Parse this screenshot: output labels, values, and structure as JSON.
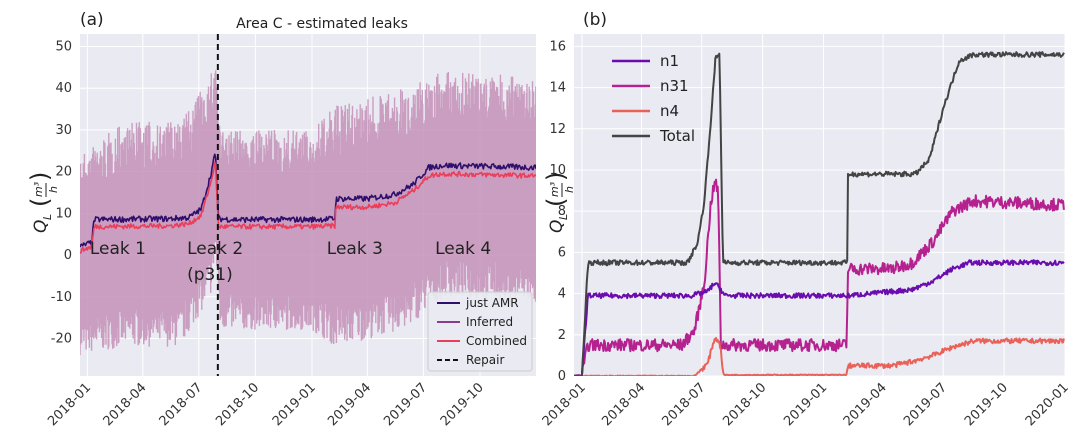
{
  "chart_data": [
    {
      "type": "line",
      "panel_label": "(a)",
      "title": "Area C - estimated leaks",
      "ylabel": "Q_L (m^3/h)",
      "ylim": [
        -29,
        53
      ],
      "xlim": [
        "2017-12-20",
        "2019-12-31"
      ],
      "x_tick_labels": [
        "2018-01",
        "2018-04",
        "2018-07",
        "2018-10",
        "2019-01",
        "2019-04",
        "2019-07",
        "2019-10"
      ],
      "y_tick_labels": [
        "-20",
        "-10",
        "0",
        "10",
        "20",
        "30",
        "40",
        "50"
      ],
      "grid": true,
      "legend_placement": "lower-right",
      "series": [
        {
          "name": "just AMR",
          "color": "#2e0f6b",
          "x": [
            "2017-12-20",
            "2018-01-08",
            "2018-01-12",
            "2018-05-15",
            "2018-06-15",
            "2018-07-05",
            "2018-07-20",
            "2018-07-28",
            "2018-08-02",
            "2018-09-01",
            "2019-01-01",
            "2019-02-07",
            "2019-02-09",
            "2019-04-01",
            "2019-05-15",
            "2019-06-15",
            "2019-07-10",
            "2019-08-01",
            "2019-12-31"
          ],
          "y": [
            2,
            3,
            8.5,
            8.7,
            9,
            11,
            19,
            24.5,
            8.7,
            8.5,
            8.5,
            8.7,
            13.5,
            13.5,
            14.5,
            17,
            21,
            21.5,
            21
          ]
        },
        {
          "name": "Inferred",
          "color": "#c490b8",
          "x": [
            "2017-12-20",
            "2018-03-01",
            "2018-06-01",
            "2018-07-20",
            "2018-07-28",
            "2018-08-05",
            "2019-01-01",
            "2019-02-08",
            "2019-06-01",
            "2019-08-01",
            "2019-12-31"
          ],
          "lower": [
            -24,
            -22,
            -22,
            -10,
            0,
            -18,
            -18,
            -22,
            -18,
            -10,
            -12
          ],
          "upper": [
            24,
            32,
            32,
            43,
            48,
            30,
            30,
            36,
            40,
            44,
            43
          ]
        },
        {
          "name": "Combined",
          "color": "#ea3e5b",
          "x": [
            "2017-12-20",
            "2018-01-08",
            "2018-01-12",
            "2018-05-15",
            "2018-06-15",
            "2018-07-05",
            "2018-07-20",
            "2018-07-28",
            "2018-08-02",
            "2018-09-01",
            "2019-01-01",
            "2019-02-07",
            "2019-02-09",
            "2019-04-01",
            "2019-05-15",
            "2019-06-15",
            "2019-07-10",
            "2019-08-01",
            "2019-12-31"
          ],
          "y": [
            1,
            2,
            6.8,
            7,
            7.5,
            9.5,
            17,
            22.5,
            6.8,
            6.8,
            6.8,
            7,
            11.5,
            11.5,
            12.5,
            15.5,
            19,
            19.5,
            19
          ]
        },
        {
          "name": "Repair",
          "color": "#111111",
          "x_value": "2018-08-01"
        }
      ],
      "annotations": [
        {
          "text": "Leak 1",
          "x": "2018-01-05",
          "y": 0.3
        },
        {
          "text": "Leak 2",
          "x": "2018-06-12",
          "y": 0.3
        },
        {
          "text": "(p31)",
          "x": "2018-06-12",
          "y": -6
        },
        {
          "text": "Leak 3",
          "x": "2019-01-25",
          "y": 0.3
        },
        {
          "text": "Leak 4",
          "x": "2019-07-20",
          "y": 0.3
        }
      ]
    },
    {
      "type": "line",
      "panel_label": "(b)",
      "ylabel": "Q_L (m^3/h)",
      "ylim": [
        0,
        16.6
      ],
      "xlim": [
        "2017-12-20",
        "2020-01-01"
      ],
      "x_tick_labels": [
        "2018-01",
        "2018-04",
        "2018-07",
        "2018-10",
        "2019-01",
        "2019-04",
        "2019-07",
        "2019-10",
        "2020-01"
      ],
      "y_tick_labels": [
        "0",
        "2",
        "4",
        "6",
        "8",
        "10",
        "12",
        "14",
        "16"
      ],
      "grid": true,
      "legend_placement": "upper-left",
      "series": [
        {
          "name": "n1",
          "color": "#6a0dad",
          "x": [
            "2017-12-20",
            "2018-01-01",
            "2018-01-10",
            "2018-06-15",
            "2018-07-10",
            "2018-07-20",
            "2018-07-28",
            "2018-08-05",
            "2019-01-01",
            "2019-02-07",
            "2019-04-15",
            "2019-05-15",
            "2019-06-15",
            "2019-07-15",
            "2019-08-10",
            "2019-12-31"
          ],
          "y": [
            0,
            0,
            3.9,
            3.9,
            4.1,
            4.5,
            4.3,
            3.9,
            3.9,
            3.9,
            4.1,
            4.2,
            4.6,
            5.2,
            5.5,
            5.5
          ]
        },
        {
          "name": "n31",
          "color": "#b5218f",
          "x": [
            "2017-12-20",
            "2018-01-01",
            "2018-01-10",
            "2018-06-01",
            "2018-06-20",
            "2018-07-05",
            "2018-07-15",
            "2018-07-22",
            "2018-07-26",
            "2018-07-30",
            "2018-08-05",
            "2019-01-01",
            "2019-02-05",
            "2019-02-07",
            "2019-04-15",
            "2019-05-15",
            "2019-06-15",
            "2019-07-15",
            "2019-08-15",
            "2019-12-31"
          ],
          "y": [
            0,
            0,
            1.5,
            1.5,
            2.2,
            4.5,
            8.5,
            9.5,
            8.8,
            1.5,
            1.5,
            1.5,
            1.5,
            5.2,
            5.2,
            5.5,
            6.5,
            8.0,
            8.5,
            8.3
          ]
        },
        {
          "name": "n4",
          "color": "#e8625a",
          "x": [
            "2017-12-20",
            "2018-06-20",
            "2018-07-10",
            "2018-07-20",
            "2018-07-28",
            "2018-08-03",
            "2019-02-05",
            "2019-02-07",
            "2019-04-15",
            "2019-05-15",
            "2019-06-15",
            "2019-07-15",
            "2019-08-15",
            "2019-12-31"
          ],
          "y": [
            0,
            0,
            0.6,
            1.8,
            1.7,
            0.05,
            0.05,
            0.5,
            0.5,
            0.7,
            1.0,
            1.4,
            1.7,
            1.7
          ]
        },
        {
          "name": "Total",
          "color": "#444444",
          "x": [
            "2017-12-20",
            "2018-01-01",
            "2018-01-10",
            "2018-06-10",
            "2018-06-25",
            "2018-07-05",
            "2018-07-15",
            "2018-07-22",
            "2018-07-28",
            "2018-08-02",
            "2019-01-01",
            "2019-02-06",
            "2019-02-07",
            "2019-05-20",
            "2019-06-10",
            "2019-07-01",
            "2019-07-25",
            "2019-08-15",
            "2019-12-31"
          ],
          "y": [
            0,
            0,
            5.5,
            5.5,
            6.5,
            8.5,
            12.5,
            15.5,
            15.6,
            5.5,
            5.5,
            5.5,
            9.8,
            9.8,
            10.5,
            13,
            15.3,
            15.6,
            15.6
          ]
        }
      ]
    }
  ]
}
